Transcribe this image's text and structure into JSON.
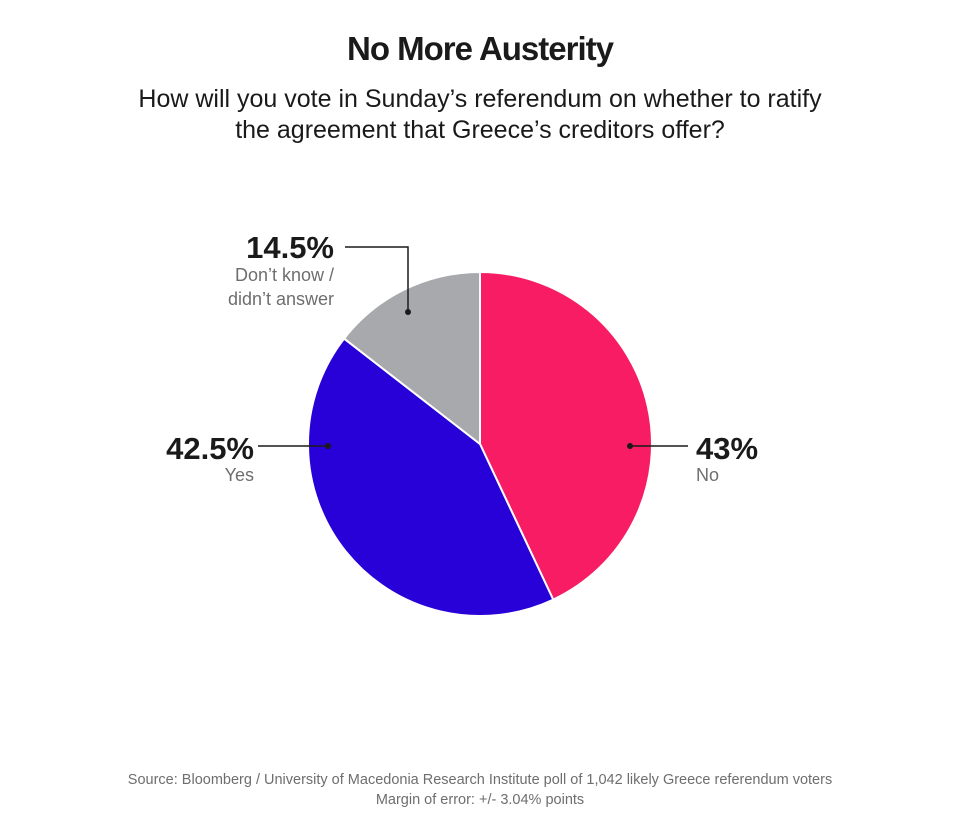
{
  "title": "No More Austerity",
  "subtitle_lines": [
    "How will you vote in Sunday’s referendum on whether to ratify",
    "the agreement that Greece’s creditors offer?"
  ],
  "chart_data": {
    "type": "pie",
    "start": "top",
    "direction": "clockwise",
    "slices": [
      {
        "label": "No",
        "value": 43,
        "value_label": "43%",
        "color": "#f71c63"
      },
      {
        "label": "Yes",
        "value": 42.5,
        "value_label": "42.5%",
        "color": "#2800d8"
      },
      {
        "label": "Don’t know / didn’t answer",
        "label_lines": [
          "Don’t know /",
          "didn’t answer"
        ],
        "value": 14.5,
        "value_label": "14.5%",
        "color": "#a8a9ad"
      }
    ]
  },
  "footer": {
    "source": "Source: Bloomberg / University of Macedonia Research Institute poll of 1,042 likely Greece referendum voters",
    "margin": "Margin of error: +/- 3.04% points"
  }
}
